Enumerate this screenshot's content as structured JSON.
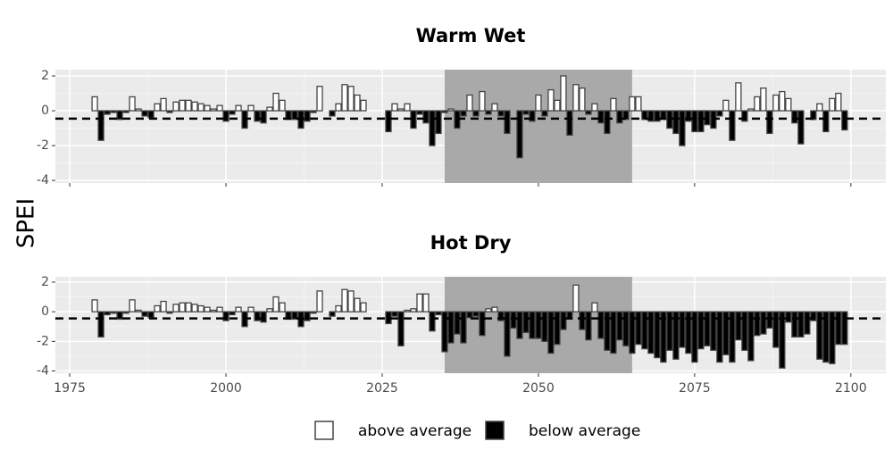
{
  "chart_data": [
    {
      "type": "bar",
      "title": "Warm Wet",
      "x": [
        1979,
        1980,
        1981,
        1982,
        1983,
        1984,
        1985,
        1986,
        1987,
        1988,
        1989,
        1990,
        1991,
        1992,
        1993,
        1994,
        1995,
        1996,
        1997,
        1998,
        1999,
        2000,
        2001,
        2002,
        2003,
        2004,
        2005,
        2006,
        2007,
        2008,
        2009,
        2010,
        2011,
        2012,
        2013,
        2014,
        2015,
        2016,
        2017,
        2018,
        2019,
        2020,
        2021,
        2022,
        2026,
        2027,
        2028,
        2029,
        2030,
        2031,
        2032,
        2033,
        2034,
        2035,
        2036,
        2037,
        2038,
        2039,
        2040,
        2041,
        2042,
        2043,
        2044,
        2045,
        2046,
        2047,
        2048,
        2049,
        2050,
        2051,
        2052,
        2053,
        2054,
        2055,
        2056,
        2057,
        2058,
        2059,
        2060,
        2061,
        2062,
        2063,
        2064,
        2065,
        2066,
        2067,
        2068,
        2069,
        2070,
        2071,
        2072,
        2073,
        2074,
        2075,
        2076,
        2077,
        2078,
        2079,
        2080,
        2081,
        2082,
        2083,
        2084,
        2085,
        2086,
        2087,
        2088,
        2089,
        2090,
        2091,
        2092,
        2093,
        2094,
        2095,
        2096,
        2097,
        2098,
        2099
      ],
      "values": [
        0.8,
        -1.7,
        -0.2,
        -0.1,
        -0.5,
        -0.1,
        0.8,
        0.1,
        -0.3,
        -0.4,
        0.4,
        0.7,
        -0.1,
        0.5,
        0.6,
        0.6,
        0.5,
        0.4,
        0.3,
        0.1,
        0.3,
        -0.6,
        -0.2,
        0.3,
        -1.0,
        0.3,
        -0.6,
        -0.7,
        0.2,
        1.0,
        0.6,
        -0.5,
        -0.5,
        -1.0,
        -0.6,
        -0.1,
        1.4,
        0.0,
        -0.3,
        0.4,
        1.5,
        1.4,
        0.9,
        0.6,
        -1.2,
        0.4,
        0.1,
        0.4,
        -1.0,
        -0.2,
        -0.7,
        -2.0,
        -1.3,
        -0.1,
        0.1,
        -1.0,
        -0.3,
        0.9,
        -0.3,
        1.1,
        -0.2,
        0.4,
        -0.3,
        -1.3,
        0.0,
        -2.7,
        -0.2,
        -0.6,
        0.9,
        -0.3,
        1.2,
        0.6,
        2.0,
        -1.4,
        1.5,
        1.3,
        -0.2,
        0.4,
        -0.7,
        -1.3,
        0.7,
        -0.7,
        -0.5,
        0.8,
        0.8,
        -0.5,
        -0.6,
        -0.6,
        -0.5,
        -1.0,
        -1.3,
        -2.0,
        -0.6,
        -1.2,
        -1.2,
        -0.8,
        -1.0,
        -0.3,
        0.6,
        -1.7,
        1.6,
        -0.6,
        0.1,
        0.8,
        1.3,
        -1.3,
        0.9,
        1.1,
        0.7,
        -0.7,
        -1.9,
        0.0,
        -0.5,
        0.4,
        -1.2,
        0.7,
        1.0,
        -1.1
      ],
      "xlim": [
        1972.7,
        2105.6
      ],
      "ylim": [
        -4.15,
        2.36
      ],
      "yticks": [
        -4,
        -2,
        0,
        2
      ],
      "hline": -0.45,
      "highlight": [
        2035,
        2065
      ],
      "grid": true
    },
    {
      "type": "bar",
      "title": "Hot Dry",
      "x": [
        1979,
        1980,
        1981,
        1982,
        1983,
        1984,
        1985,
        1986,
        1987,
        1988,
        1989,
        1990,
        1991,
        1992,
        1993,
        1994,
        1995,
        1996,
        1997,
        1998,
        1999,
        2000,
        2001,
        2002,
        2003,
        2004,
        2005,
        2006,
        2007,
        2008,
        2009,
        2010,
        2011,
        2012,
        2013,
        2014,
        2015,
        2016,
        2017,
        2018,
        2019,
        2020,
        2021,
        2022,
        2026,
        2027,
        2028,
        2029,
        2030,
        2031,
        2032,
        2033,
        2034,
        2035,
        2036,
        2037,
        2038,
        2039,
        2040,
        2041,
        2042,
        2043,
        2044,
        2045,
        2046,
        2047,
        2048,
        2049,
        2050,
        2051,
        2052,
        2053,
        2054,
        2055,
        2056,
        2057,
        2058,
        2059,
        2060,
        2061,
        2062,
        2063,
        2064,
        2065,
        2066,
        2067,
        2068,
        2069,
        2070,
        2071,
        2072,
        2073,
        2074,
        2075,
        2076,
        2077,
        2078,
        2079,
        2080,
        2081,
        2082,
        2083,
        2084,
        2085,
        2086,
        2087,
        2088,
        2089,
        2090,
        2091,
        2092,
        2093,
        2094,
        2095,
        2096,
        2097,
        2098,
        2099
      ],
      "values": [
        0.8,
        -1.7,
        -0.2,
        -0.1,
        -0.5,
        -0.1,
        0.8,
        0.1,
        -0.3,
        -0.4,
        0.4,
        0.7,
        -0.1,
        0.5,
        0.6,
        0.6,
        0.5,
        0.4,
        0.3,
        0.1,
        0.3,
        -0.6,
        -0.2,
        0.3,
        -1.0,
        0.3,
        -0.6,
        -0.7,
        0.2,
        1.0,
        0.6,
        -0.5,
        -0.5,
        -1.0,
        -0.6,
        -0.1,
        1.4,
        0.0,
        -0.3,
        0.4,
        1.5,
        1.4,
        0.9,
        0.6,
        -0.8,
        -0.3,
        -2.3,
        0.1,
        0.2,
        1.2,
        1.2,
        -1.3,
        -0.2,
        -2.7,
        -2.1,
        -1.5,
        -2.1,
        -0.4,
        -0.3,
        -1.6,
        0.2,
        0.3,
        -0.6,
        -3.0,
        -1.1,
        -1.8,
        -1.4,
        -1.8,
        -1.8,
        -2.0,
        -2.8,
        -2.2,
        -1.2,
        -0.5,
        1.8,
        -1.2,
        -1.9,
        0.6,
        -1.8,
        -2.6,
        -2.8,
        -1.9,
        -2.3,
        -2.8,
        -2.2,
        -2.5,
        -2.8,
        -3.1,
        -3.4,
        -2.6,
        -3.2,
        -2.4,
        -2.8,
        -3.4,
        -2.5,
        -2.3,
        -2.6,
        -3.4,
        -2.9,
        -3.4,
        -1.9,
        -2.6,
        -3.3,
        -1.6,
        -1.5,
        -1.1,
        -2.4,
        -3.8,
        -0.7,
        -1.7,
        -1.7,
        -1.5,
        -0.6,
        -3.2,
        -3.4,
        -3.5,
        -2.2,
        -2.2
      ],
      "xlim": [
        1972.7,
        2105.6
      ],
      "ylim": [
        -4.15,
        2.36
      ],
      "yticks": [
        -4,
        -2,
        0,
        2
      ],
      "xticks": [
        1975,
        2000,
        2025,
        2050,
        2075,
        2100
      ],
      "hline": -0.45,
      "highlight": [
        2035,
        2065
      ],
      "grid": true
    }
  ],
  "shared": {
    "ylabel": "SPEI",
    "legend": [
      {
        "name": "above average",
        "color": "#ffffff"
      },
      {
        "name": "below average",
        "color": "#000000"
      }
    ]
  }
}
